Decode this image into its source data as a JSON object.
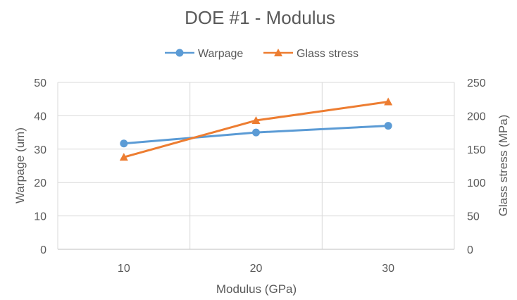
{
  "chart_data": {
    "type": "line",
    "title": "DOE #1 - Modulus",
    "xlabel": "Modulus (GPa)",
    "ylabel": "Warpage (um)",
    "y2label": "Glass stress (MPa)",
    "categories": [
      "10",
      "20",
      "30"
    ],
    "ylim": [
      0,
      50
    ],
    "yticks": [
      "0",
      "10",
      "20",
      "30",
      "40",
      "50"
    ],
    "y2lim": [
      0,
      250
    ],
    "y2ticks": [
      "0",
      "50",
      "100",
      "150",
      "200",
      "250"
    ],
    "grid": true,
    "legend_position": "top",
    "series": [
      {
        "name": "Warpage",
        "axis": "left",
        "marker": "circle",
        "color": "#5b9bd5",
        "values": [
          31.7,
          35.0,
          37.0
        ]
      },
      {
        "name": "Glass stress",
        "axis": "right",
        "marker": "triangle",
        "color": "#ed7d31",
        "values": [
          138,
          193,
          221
        ]
      }
    ]
  }
}
